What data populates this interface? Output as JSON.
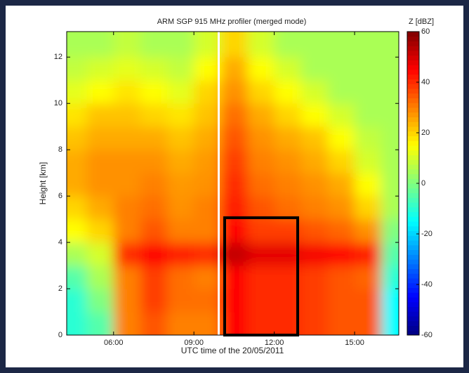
{
  "chart_data": {
    "type": "heatmap",
    "title": "ARM SGP 915 MHz profiler (merged mode)",
    "xlabel": "UTC time of the 20/05/2011",
    "ylabel": "Height [km]",
    "colorbar_label": "Z [dBZ]",
    "colormap": "jet",
    "x": [
      4.5,
      5.5,
      6.5,
      7.5,
      8.5,
      9.5,
      10.5,
      11.5,
      12.5,
      13.5,
      14.5,
      15.5,
      16.5
    ],
    "y": [
      0.5,
      1.5,
      2.5,
      3.5,
      4.5,
      5.5,
      6.5,
      7.5,
      8.5,
      9.5,
      10.5,
      11.5,
      12.5
    ],
    "z": [
      [
        -10,
        -5,
        30,
        35,
        30,
        30,
        45,
        40,
        40,
        38,
        35,
        35,
        -15
      ],
      [
        -10,
        0,
        30,
        38,
        32,
        32,
        45,
        40,
        40,
        38,
        35,
        35,
        -15
      ],
      [
        -5,
        5,
        30,
        38,
        32,
        30,
        45,
        40,
        40,
        38,
        35,
        33,
        -10
      ],
      [
        5,
        10,
        40,
        45,
        42,
        40,
        52,
        48,
        48,
        46,
        45,
        42,
        -5
      ],
      [
        15,
        20,
        30,
        35,
        30,
        30,
        45,
        38,
        38,
        35,
        33,
        28,
        0
      ],
      [
        20,
        25,
        30,
        32,
        28,
        30,
        42,
        35,
        32,
        30,
        28,
        20,
        5
      ],
      [
        25,
        28,
        28,
        30,
        27,
        28,
        40,
        32,
        30,
        28,
        25,
        15,
        5
      ],
      [
        25,
        28,
        28,
        28,
        25,
        27,
        38,
        30,
        28,
        25,
        20,
        10,
        5
      ],
      [
        22,
        25,
        25,
        25,
        22,
        25,
        35,
        28,
        25,
        22,
        15,
        8,
        5
      ],
      [
        18,
        22,
        22,
        20,
        18,
        22,
        32,
        25,
        20,
        15,
        10,
        5,
        5
      ],
      [
        12,
        15,
        18,
        15,
        12,
        20,
        28,
        20,
        15,
        10,
        5,
        5,
        5
      ],
      [
        8,
        10,
        12,
        10,
        8,
        15,
        25,
        15,
        10,
        5,
        5,
        5,
        5
      ],
      [
        5,
        5,
        8,
        5,
        5,
        10,
        20,
        10,
        5,
        5,
        5,
        5,
        5
      ]
    ],
    "xlim": [
      4.25,
      16.65
    ],
    "xticks": [
      {
        "value": 6,
        "label": "06:00"
      },
      {
        "value": 9,
        "label": "09:00"
      },
      {
        "value": 12,
        "label": "12:00"
      },
      {
        "value": 15,
        "label": "15:00"
      }
    ],
    "ylim": [
      0,
      13.1
    ],
    "yticks": [
      0,
      2,
      4,
      6,
      8,
      10,
      12
    ],
    "zlim": [
      -60,
      60
    ],
    "zticks": [
      -60,
      -40,
      -20,
      0,
      20,
      40,
      60
    ]
  }
}
